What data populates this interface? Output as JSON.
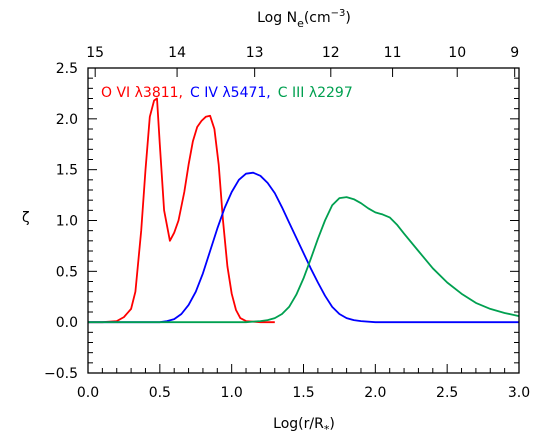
{
  "chart_data": {
    "type": "line",
    "xlabel_main": "Log(r/R",
    "xlabel_sub": "*",
    "xlabel_close": ")",
    "ylabel": "ζ",
    "top_axis_title_main": "Log N",
    "top_axis_title_sub": "e",
    "top_axis_title_unit": "(cm",
    "top_axis_title_sup": "−3",
    "top_axis_title_close": ")",
    "xlim": [
      0.0,
      3.0
    ],
    "ylim": [
      -0.5,
      2.5
    ],
    "x_ticks": [
      0.0,
      0.5,
      1.0,
      1.5,
      2.0,
      2.5,
      3.0
    ],
    "x_tick_labels": [
      "0.0",
      "0.5",
      "1.0",
      "1.5",
      "2.0",
      "2.5",
      "3.0"
    ],
    "y_ticks": [
      -0.5,
      0.0,
      0.5,
      1.0,
      1.5,
      2.0,
      2.5
    ],
    "y_tick_labels": [
      "−0.5",
      "0.0",
      "0.5",
      "1.0",
      "1.5",
      "2.0",
      "2.5"
    ],
    "top_ticks": [
      {
        "label": "15",
        "x": 0.05
      },
      {
        "label": "14",
        "x": 0.62
      },
      {
        "label": "13",
        "x": 1.16
      },
      {
        "label": "12",
        "x": 1.69
      },
      {
        "label": "11",
        "x": 2.12
      },
      {
        "label": "10",
        "x": 2.57
      },
      {
        "label": "9",
        "x": 2.97
      }
    ],
    "grid": false,
    "legend": [
      {
        "label": "O VI λ3811,",
        "color": "#ff0000"
      },
      {
        "label": "C IV λ5471,",
        "color": "#0000ff"
      },
      {
        "label": "C III λ2297",
        "color": "#00a050"
      }
    ],
    "series": [
      {
        "label": "O VI λ3811",
        "color": "#ff0000",
        "x": [
          0.0,
          0.1,
          0.2,
          0.25,
          0.3,
          0.33,
          0.37,
          0.4,
          0.43,
          0.46,
          0.48,
          0.5,
          0.53,
          0.57,
          0.6,
          0.63,
          0.67,
          0.7,
          0.73,
          0.76,
          0.79,
          0.82,
          0.85,
          0.88,
          0.91,
          0.94,
          0.97,
          1.0,
          1.03,
          1.06,
          1.1,
          1.2,
          1.3
        ],
        "y": [
          0.0,
          0.0,
          0.01,
          0.05,
          0.13,
          0.3,
          0.9,
          1.5,
          2.02,
          2.18,
          2.2,
          1.75,
          1.1,
          0.8,
          0.88,
          1.0,
          1.28,
          1.55,
          1.78,
          1.92,
          1.98,
          2.02,
          2.03,
          1.9,
          1.55,
          1.0,
          0.55,
          0.28,
          0.12,
          0.04,
          0.01,
          0.0,
          0.0
        ]
      },
      {
        "label": "C IV λ5471",
        "color": "#0000ff",
        "x": [
          0.0,
          0.4,
          0.5,
          0.55,
          0.6,
          0.65,
          0.7,
          0.75,
          0.8,
          0.85,
          0.9,
          0.95,
          1.0,
          1.05,
          1.1,
          1.15,
          1.2,
          1.25,
          1.3,
          1.35,
          1.4,
          1.45,
          1.5,
          1.55,
          1.6,
          1.65,
          1.7,
          1.75,
          1.8,
          1.85,
          1.9,
          2.0,
          2.2,
          3.0
        ],
        "y": [
          0.0,
          0.0,
          0.0,
          0.01,
          0.03,
          0.08,
          0.17,
          0.3,
          0.48,
          0.7,
          0.92,
          1.12,
          1.28,
          1.4,
          1.46,
          1.47,
          1.44,
          1.37,
          1.27,
          1.13,
          0.98,
          0.83,
          0.68,
          0.53,
          0.39,
          0.26,
          0.15,
          0.08,
          0.04,
          0.02,
          0.01,
          0.0,
          0.0,
          0.0
        ]
      },
      {
        "label": "C III λ2297",
        "color": "#00a050",
        "x": [
          0.0,
          1.0,
          1.1,
          1.2,
          1.25,
          1.3,
          1.35,
          1.4,
          1.45,
          1.5,
          1.55,
          1.6,
          1.65,
          1.7,
          1.75,
          1.8,
          1.85,
          1.9,
          1.95,
          2.0,
          2.05,
          2.1,
          2.15,
          2.2,
          2.3,
          2.4,
          2.5,
          2.6,
          2.7,
          2.8,
          2.9,
          3.0
        ],
        "y": [
          0.0,
          0.0,
          0.0,
          0.01,
          0.02,
          0.04,
          0.08,
          0.15,
          0.27,
          0.43,
          0.62,
          0.82,
          1.0,
          1.15,
          1.22,
          1.23,
          1.21,
          1.17,
          1.12,
          1.08,
          1.06,
          1.03,
          0.96,
          0.87,
          0.7,
          0.53,
          0.39,
          0.28,
          0.19,
          0.13,
          0.09,
          0.06
        ]
      }
    ]
  }
}
